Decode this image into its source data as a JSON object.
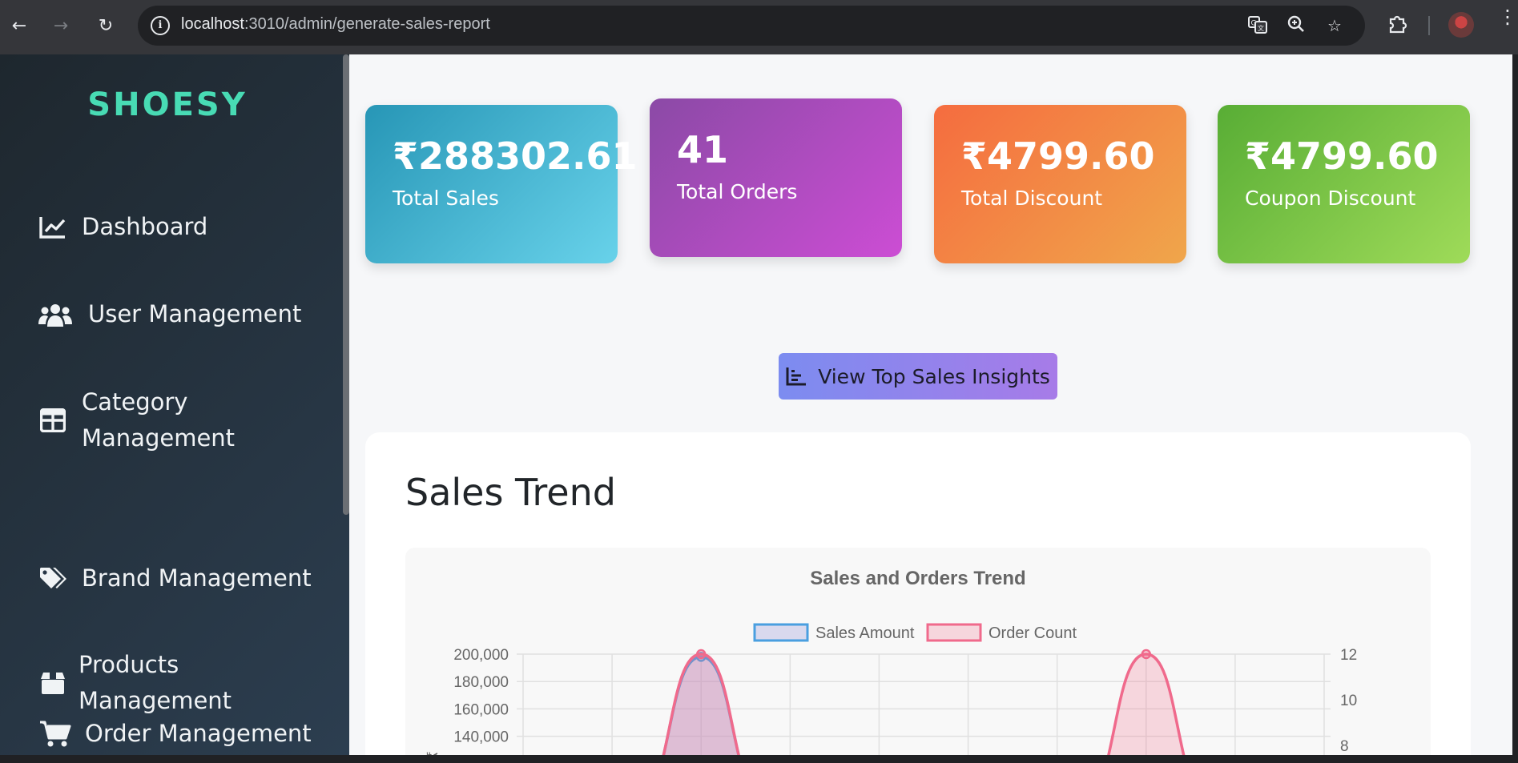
{
  "browser": {
    "url_host": "localhost",
    "url_path": ":3010/admin/generate-sales-report"
  },
  "sidebar": {
    "logo": "SHOESY",
    "items": [
      {
        "label": "Dashboard",
        "icon": "chart-line-icon"
      },
      {
        "label": "User Management",
        "icon": "users-icon"
      },
      {
        "label": "Category Management",
        "line1": "Category",
        "line2": "Management",
        "icon": "grid-icon"
      },
      {
        "label": "Brand Management",
        "icon": "tags-icon"
      },
      {
        "label": "Products Management",
        "line1": "Products",
        "line2": "Management",
        "icon": "box-icon"
      },
      {
        "label": "Order Management",
        "icon": "cart-icon"
      }
    ]
  },
  "stats": [
    {
      "value": "₹288302.61",
      "caption": "Total Sales"
    },
    {
      "value": "41",
      "caption": "Total Orders"
    },
    {
      "value": "₹4799.60",
      "caption": "Total Discount"
    },
    {
      "value": "₹4799.60",
      "caption": "Coupon Discount"
    }
  ],
  "insights_button": "View Top Sales Insights",
  "trend": {
    "title": "Sales Trend"
  },
  "chart_data": {
    "type": "line",
    "title": "Sales and Orders Trend",
    "series": [
      {
        "name": "Sales Amount",
        "color": "#4a9fe0",
        "fill": "rgba(160,160,220,0.35)",
        "axis": "left",
        "peaks": [
          {
            "x_index": 2,
            "value": 198000
          }
        ]
      },
      {
        "name": "Order Count",
        "color": "#f06a8c",
        "fill": "rgba(240,110,140,0.25)",
        "axis": "right",
        "peaks": [
          {
            "x_index": 2,
            "value": 12
          },
          {
            "x_index": 7,
            "value": 12
          }
        ]
      }
    ],
    "y_left": {
      "ticks": [
        "200,000",
        "180,000",
        "160,000",
        "140,000"
      ],
      "label": "₹",
      "range": [
        0,
        200000
      ]
    },
    "y_right": {
      "ticks": [
        "12",
        "10",
        "8"
      ],
      "range": [
        0,
        12
      ]
    },
    "x_count": 10,
    "grid": true,
    "legend_position": "top"
  }
}
